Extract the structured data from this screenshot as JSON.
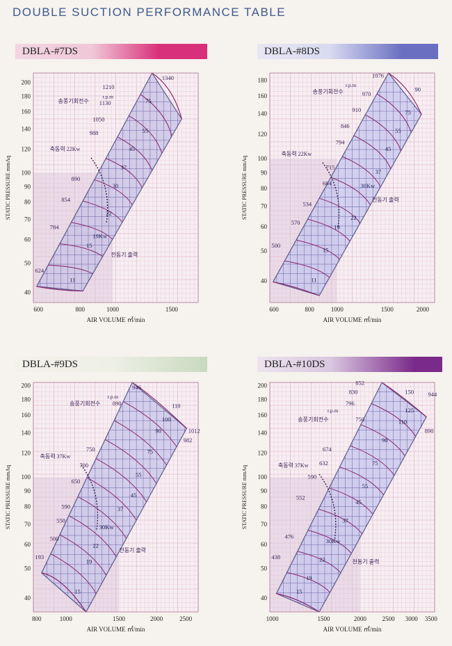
{
  "page": {
    "title": "DOUBLE SUCTION PERFORMANCE TABLE"
  },
  "common": {
    "xlabel": "AIR VOLUME ㎥/min",
    "ylabel": "STATIC PRESSURE mmAq",
    "rpm_unit": "r.p.m",
    "rpm_caption": "송풍기회전수",
    "shaft_caption": "축동력",
    "motor_caption": "전동기 출력"
  },
  "chart_data": [
    {
      "type": "scatter",
      "model": "DBLA-#7DS",
      "accent": "#d8307a",
      "x_ticks": [
        600,
        800,
        1000,
        1500
      ],
      "y_ticks": [
        40,
        50,
        60,
        70,
        80,
        90,
        100,
        120,
        140,
        160,
        180,
        200
      ],
      "xlim": [
        580,
        1800
      ],
      "ylim": [
        37,
        215
      ],
      "scale": "log",
      "rpm_labels": [
        "1340",
        "1210",
        "1130",
        "1050",
        "988",
        "890",
        "854",
        "784",
        "624"
      ],
      "power_labels": [
        "75",
        "55",
        "45",
        "37",
        "30",
        "22",
        "19Kw",
        "15",
        "11"
      ],
      "shaft_power": "22Kw"
    },
    {
      "type": "scatter",
      "model": "DBLA-#8DS",
      "accent": "#6a6fc2",
      "x_ticks": [
        600,
        800,
        1000,
        1500,
        2000
      ],
      "y_ticks": [
        40,
        50,
        60,
        70,
        80,
        90,
        100,
        120,
        140,
        160,
        180
      ],
      "xlim": [
        580,
        2200
      ],
      "ylim": [
        34,
        190
      ],
      "scale": "log",
      "rpm_labels": [
        "1076",
        "970",
        "910",
        "846",
        "794",
        "715",
        "684",
        "534",
        "570",
        "500"
      ],
      "power_labels": [
        "90",
        "75",
        "55",
        "45",
        "37",
        "30Kw",
        "22",
        "19",
        "15",
        "11"
      ],
      "shaft_power": "22Kw"
    },
    {
      "type": "scatter",
      "model": "DBLA-#9DS",
      "accent": "#c9d9c0",
      "x_ticks": [
        800,
        1000,
        1500,
        2000,
        2500
      ],
      "y_ticks": [
        40,
        50,
        60,
        70,
        80,
        90,
        100,
        120,
        140,
        160,
        180,
        200
      ],
      "xlim": [
        780,
        2750
      ],
      "ylim": [
        36,
        205
      ],
      "scale": "log",
      "rpm_labels": [
        "946",
        "890",
        "750",
        "700",
        "650",
        "590",
        "550",
        "500",
        "193",
        "1012",
        "982"
      ],
      "power_labels": [
        "110",
        "100",
        "90",
        "75",
        "55",
        "45",
        "37",
        "30Kw",
        "22",
        "19",
        "15"
      ],
      "shaft_power": "37Kw"
    },
    {
      "type": "scatter",
      "model": "DBLA-#10DS",
      "accent": "#7a2a8a",
      "x_ticks": [
        1000,
        1500,
        2000,
        2500,
        3000,
        3500
      ],
      "y_ticks": [
        40,
        50,
        60,
        70,
        80,
        90,
        100,
        120,
        140,
        160,
        180,
        200
      ],
      "xlim": [
        980,
        3600
      ],
      "ylim": [
        36,
        205
      ],
      "scale": "log",
      "rpm_labels": [
        "852",
        "830",
        "796",
        "750",
        "674",
        "632",
        "590",
        "552",
        "476",
        "438",
        "944",
        "890"
      ],
      "power_labels": [
        "150",
        "125",
        "110",
        "90",
        "75",
        "55",
        "45",
        "37",
        "30Kw",
        "22",
        "19",
        "15"
      ],
      "shaft_power": "37Kw"
    }
  ]
}
